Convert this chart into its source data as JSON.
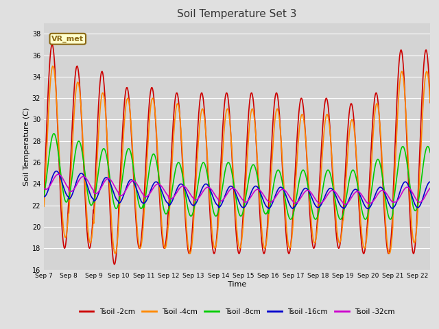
{
  "title": "Soil Temperature Set 3",
  "xlabel": "Time",
  "ylabel": "Soil Temperature (C)",
  "ylim": [
    16,
    39
  ],
  "yticks": [
    16,
    18,
    20,
    22,
    24,
    26,
    28,
    30,
    32,
    34,
    36,
    38
  ],
  "xtick_labels": [
    "Sep 7",
    "Sep 8",
    "Sep 9",
    "Sep 10",
    "Sep 11",
    "Sep 12",
    "Sep 13",
    "Sep 14",
    "Sep 15",
    "Sep 16",
    "Sep 17",
    "Sep 18",
    "Sep 19",
    "Sep 20",
    "Sep 21",
    "Sep 22"
  ],
  "bg_color": "#e0e0e0",
  "plot_bg_color": "#d4d4d4",
  "grid_color": "#ffffff",
  "annotation_text": "VR_met",
  "annotation_box_color": "#ffffcc",
  "annotation_border_color": "#8b6914",
  "series_labels": [
    "Tsoil -2cm",
    "Tsoil -4cm",
    "Tsoil -8cm",
    "Tsoil -16cm",
    "Tsoil -32cm"
  ],
  "series_colors": [
    "#cc0000",
    "#ff8800",
    "#00cc00",
    "#0000cc",
    "#cc00cc"
  ],
  "series_lw": [
    1.2,
    1.2,
    1.2,
    1.2,
    1.2
  ],
  "n_points": 744,
  "n_days": 15.5,
  "figsize": [
    6.4,
    4.8
  ],
  "dpi": 100
}
